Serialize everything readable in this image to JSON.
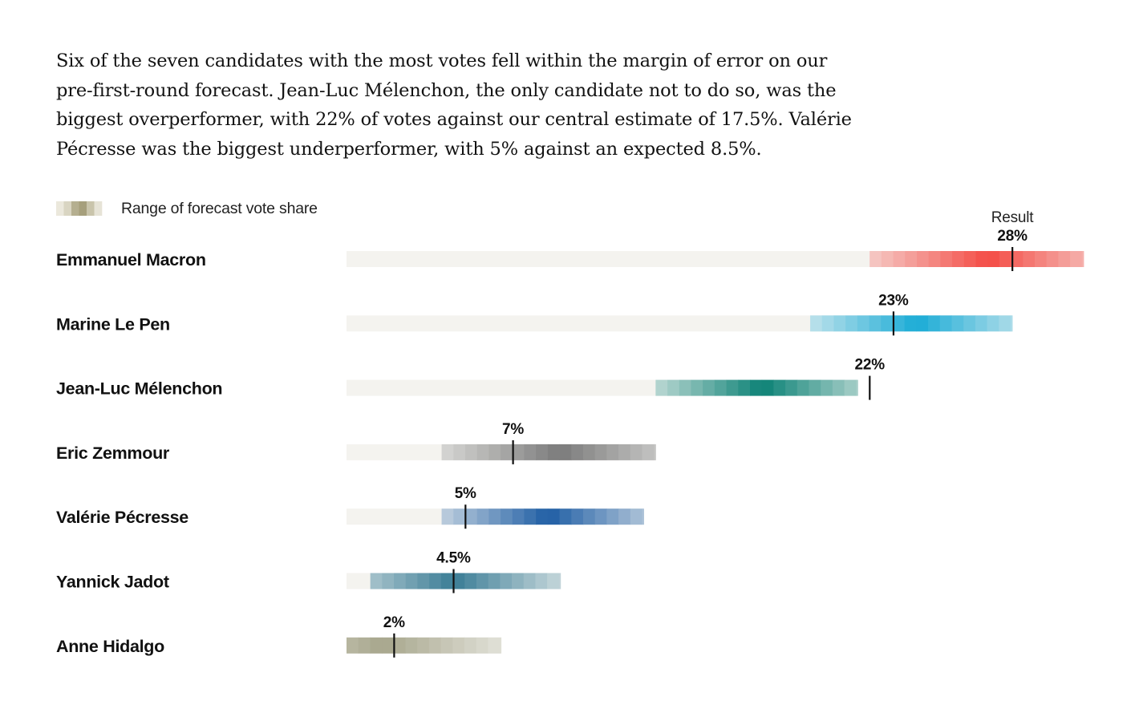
{
  "intro": {
    "text": "Six of the seven candidates with the most votes fell within the margin of error on our pre-first-round forecast. Jean-Luc Mélenchon, the only candidate not to do so, was the biggest overperformer, with 22% of votes against our central estimate of 17.5%. Valérie Pécresse was the biggest underperformer, with 5% against an expected 8.5%."
  },
  "chart_data": {
    "type": "bar",
    "subtype": "range-with-marker",
    "legend": {
      "label": "Range of forecast vote share",
      "placement": "top-left",
      "swatch_colors": [
        "#ebe8dc",
        "#d9d5c2",
        "#b5af90",
        "#a69f7c",
        "#c9c4ab",
        "#e6e3d6"
      ]
    },
    "result_label": "Result",
    "x_range": [
      0,
      31
    ],
    "candidates": [
      {
        "name": "Emmanuel Macron",
        "result": 28,
        "result_label": "28%",
        "range": [
          22,
          31
        ],
        "center": 27,
        "color": "#f44c45"
      },
      {
        "name": "Marine Le Pen",
        "result": 23,
        "result_label": "23%",
        "range": [
          19.5,
          28
        ],
        "center": 24,
        "color": "#1aabd6"
      },
      {
        "name": "Jean-Luc Mélenchon",
        "result": 22,
        "result_label": "22%",
        "range": [
          13,
          21.5
        ],
        "center": 17.5,
        "color": "#0d8276"
      },
      {
        "name": "Eric Zemmour",
        "result": 7,
        "result_label": "7%",
        "range": [
          4,
          13
        ],
        "center": 9,
        "color": "#7b7b7b"
      },
      {
        "name": "Valérie Pécresse",
        "result": 5,
        "result_label": "5%",
        "range": [
          4,
          12.5
        ],
        "center": 8.5,
        "color": "#1f5ea4"
      },
      {
        "name": "Yannick Jadot",
        "result": 4.5,
        "result_label": "4.5%",
        "range": [
          1,
          9
        ],
        "center": 4.5,
        "color": "#3a7d96"
      },
      {
        "name": "Anne Hidalgo",
        "result": 2,
        "result_label": "2%",
        "range": [
          0,
          6.5
        ],
        "center": 1.5,
        "color": "#a7a68c"
      }
    ],
    "track_color": "#f4f3ef",
    "marker_color": "#111111"
  }
}
